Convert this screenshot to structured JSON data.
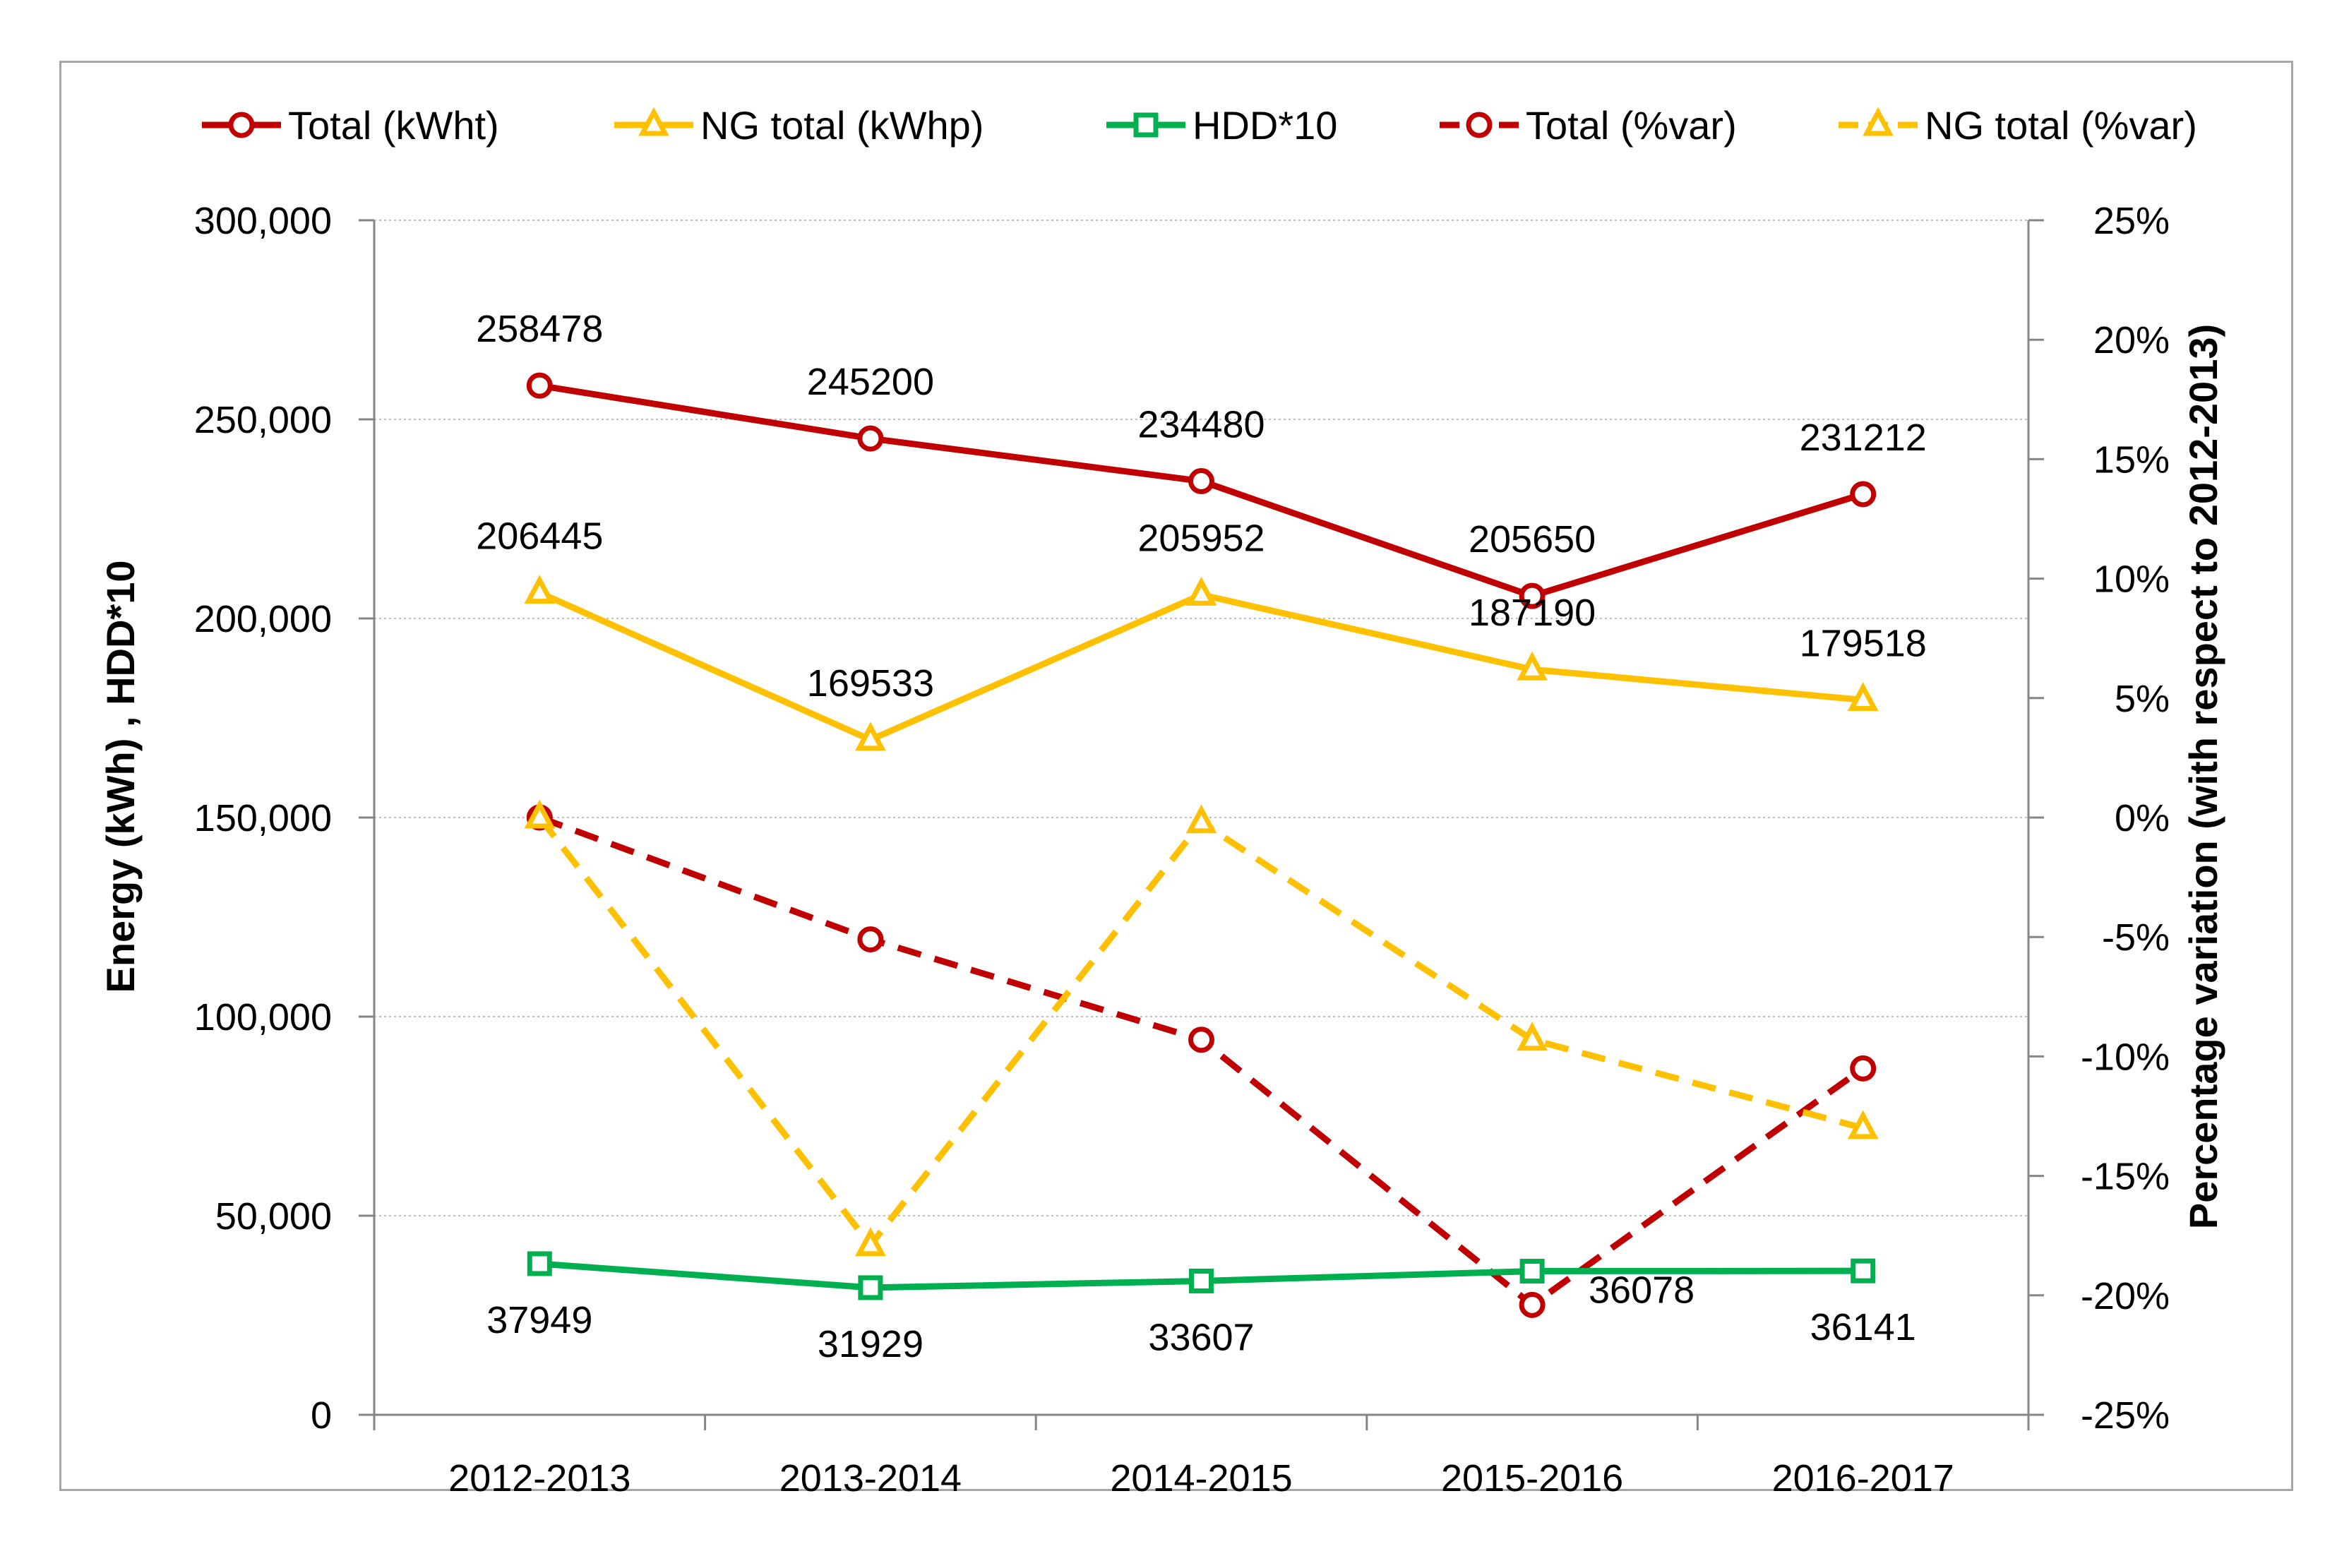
{
  "chart_data": {
    "type": "line",
    "categories": [
      "2012-2013",
      "2013-2014",
      "2014-2015",
      "2015-2016",
      "2016-2017"
    ],
    "y_left": {
      "label": "Energy  (kWh)  ,    HDD*10",
      "ylim": [
        0,
        300000
      ],
      "ticks": [
        "0",
        "50,000",
        "100,000",
        "150,000",
        "200,000",
        "250,000",
        "300,000"
      ],
      "tick_values": [
        0,
        50000,
        100000,
        150000,
        200000,
        250000,
        300000
      ]
    },
    "y_right": {
      "label": "Percentage variation (with respect to 2012-2013)",
      "ylim": [
        -25,
        25
      ],
      "ticks": [
        "-25%",
        "-20%",
        "-15%",
        "-10%",
        "-5%",
        "0%",
        "5%",
        "10%",
        "15%",
        "20%",
        "25%"
      ],
      "tick_values": [
        -25,
        -20,
        -15,
        -10,
        -5,
        0,
        5,
        10,
        15,
        20,
        25
      ]
    },
    "grid": "horizontal",
    "legend_position": "top",
    "series": [
      {
        "name": "Total (kWht)",
        "axis": "left",
        "color": "#C00000",
        "marker": "circle",
        "dashed": false,
        "values": [
          258478,
          245200,
          234480,
          205650,
          231212
        ],
        "labels": [
          "258478",
          "245200",
          "234480",
          "205650",
          "231212"
        ]
      },
      {
        "name": "NG total (kWhp)",
        "axis": "left",
        "color": "#FFC000",
        "marker": "triangle",
        "dashed": false,
        "values": [
          206445,
          169533,
          205952,
          187190,
          179518
        ],
        "labels": [
          "206445",
          "169533",
          "205952",
          "187190",
          "179518"
        ]
      },
      {
        "name": "HDD*10",
        "axis": "left",
        "color": "#00B050",
        "marker": "square",
        "dashed": false,
        "values": [
          37949,
          31929,
          33607,
          36078,
          36141
        ],
        "labels": [
          "37949",
          "31929",
          "33607",
          "36078",
          "36141"
        ]
      },
      {
        "name": "Total (%var)",
        "axis": "right",
        "color": "#C00000",
        "marker": "circle",
        "dashed": true,
        "values": [
          0.0,
          -5.1,
          -9.3,
          -20.4,
          -10.5
        ]
      },
      {
        "name": "NG total (%var)",
        "axis": "right",
        "color": "#FFC000",
        "marker": "triangle",
        "dashed": true,
        "values": [
          0.0,
          -17.9,
          -0.2,
          -9.3,
          -13.0
        ]
      }
    ]
  }
}
